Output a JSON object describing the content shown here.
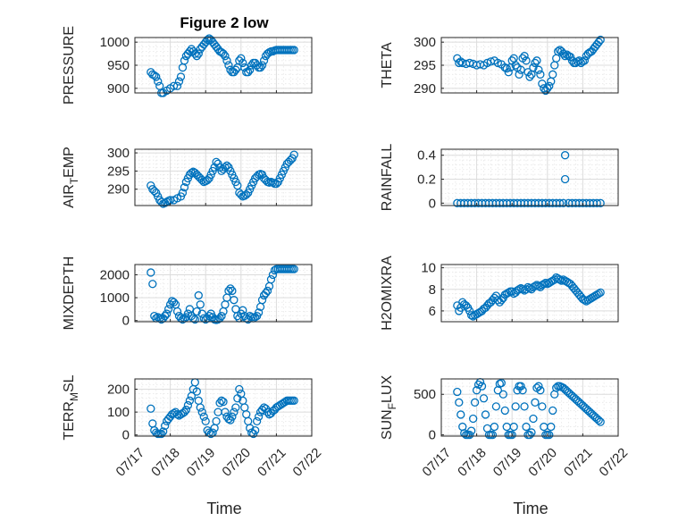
{
  "figure": {
    "title": "Figure 2 low",
    "marker_color": "#0072bd",
    "x_tick_labels": [
      "07/17",
      "07/18",
      "07/19",
      "07/20",
      "07/21",
      "07/22"
    ],
    "x_label": "Time"
  },
  "chart_data": [
    {
      "type": "scatter",
      "title": "Figure 2 low",
      "ylabel": "PRESSURE",
      "xlabel": "",
      "xlim": [
        0,
        5
      ],
      "ylim": [
        890,
        1010
      ],
      "yticks": [
        900,
        950,
        1000
      ],
      "ytick_labels": [
        "900",
        "950",
        "1000"
      ],
      "grid": true,
      "minor_grid": true,
      "x": [
        0.45,
        0.5,
        0.55,
        0.6,
        0.65,
        0.7,
        0.75,
        0.8,
        0.9,
        1.0,
        1.1,
        1.2,
        1.25,
        1.3,
        1.35,
        1.4,
        1.45,
        1.5,
        1.55,
        1.6,
        1.65,
        1.7,
        1.75,
        1.8,
        1.85,
        1.9,
        1.95,
        2.0,
        2.05,
        2.1,
        2.15,
        2.2,
        2.25,
        2.3,
        2.35,
        2.4,
        2.45,
        2.5,
        2.55,
        2.6,
        2.65,
        2.7,
        2.75,
        2.8,
        2.85,
        2.9,
        2.95,
        3.0,
        3.05,
        3.1,
        3.15,
        3.2,
        3.25,
        3.3,
        3.35,
        3.4,
        3.45,
        3.5,
        3.55,
        3.6,
        3.65,
        3.7,
        3.75,
        3.8,
        3.85,
        3.9,
        3.95,
        4.0,
        4.05,
        4.1,
        4.15,
        4.2,
        4.25,
        4.3,
        4.35,
        4.4,
        4.45,
        4.5
      ],
      "y": [
        935,
        930,
        928,
        925,
        915,
        905,
        890,
        890,
        895,
        900,
        905,
        905,
        915,
        925,
        945,
        960,
        970,
        975,
        980,
        985,
        980,
        975,
        970,
        975,
        985,
        990,
        995,
        1000,
        1005,
        1008,
        1005,
        1000,
        995,
        990,
        985,
        980,
        978,
        975,
        970,
        960,
        950,
        940,
        935,
        935,
        940,
        945,
        960,
        965,
        955,
        945,
        935,
        935,
        940,
        950,
        955,
        955,
        950,
        945,
        945,
        950,
        960,
        970,
        975,
        978,
        980,
        980,
        982,
        983,
        983,
        983,
        983,
        983,
        983,
        983,
        983,
        983,
        983,
        983
      ]
    },
    {
      "type": "scatter",
      "title": "",
      "ylabel": "THETA",
      "xlabel": "",
      "xlim": [
        0,
        5
      ],
      "ylim": [
        289,
        301
      ],
      "yticks": [
        290,
        295,
        300
      ],
      "ytick_labels": [
        "290",
        "295",
        "300"
      ],
      "grid": true,
      "minor_grid": true,
      "x": [
        0.45,
        0.5,
        0.55,
        0.6,
        0.7,
        0.8,
        0.9,
        1.0,
        1.1,
        1.2,
        1.3,
        1.4,
        1.5,
        1.6,
        1.7,
        1.8,
        1.85,
        1.9,
        1.95,
        2.0,
        2.05,
        2.1,
        2.15,
        2.2,
        2.25,
        2.3,
        2.35,
        2.4,
        2.45,
        2.5,
        2.55,
        2.6,
        2.65,
        2.7,
        2.75,
        2.8,
        2.85,
        2.9,
        2.95,
        3.0,
        3.05,
        3.1,
        3.15,
        3.2,
        3.25,
        3.3,
        3.35,
        3.4,
        3.45,
        3.5,
        3.55,
        3.6,
        3.65,
        3.7,
        3.75,
        3.8,
        3.85,
        3.9,
        3.95,
        4.0,
        4.05,
        4.1,
        4.15,
        4.2,
        4.25,
        4.3,
        4.35,
        4.4,
        4.45,
        4.5
      ],
      "y": [
        296.5,
        295.5,
        295.8,
        295.5,
        295.3,
        295.5,
        295.3,
        295,
        295.2,
        295,
        295.5,
        295.8,
        296,
        295.5,
        295.2,
        294.5,
        294.3,
        293.5,
        294.5,
        296,
        296.5,
        295,
        294.5,
        293,
        294,
        296.5,
        297,
        296,
        293.5,
        292.5,
        293,
        294.5,
        295.5,
        296,
        294,
        293,
        291,
        290,
        289.5,
        290,
        290.5,
        291.5,
        293,
        295,
        296.5,
        298,
        298.3,
        298,
        297.5,
        297,
        297.3,
        297,
        296.8,
        296,
        295.5,
        295.5,
        295.8,
        296,
        295.5,
        295.8,
        296,
        297,
        297.5,
        297.8,
        298,
        298.5,
        299,
        299.5,
        300,
        300.5
      ]
    },
    {
      "type": "scatter",
      "title": "",
      "ylabel": "AIR_TEMP",
      "xlabel": "",
      "xlim": [
        0,
        5
      ],
      "ylim": [
        285.5,
        301
      ],
      "yticks": [
        290,
        295,
        300
      ],
      "ytick_labels": [
        "290",
        "295",
        "300"
      ],
      "grid": true,
      "minor_grid": true,
      "x": [
        0.45,
        0.5,
        0.55,
        0.6,
        0.65,
        0.7,
        0.75,
        0.8,
        0.85,
        0.9,
        0.95,
        1.0,
        1.1,
        1.2,
        1.3,
        1.35,
        1.4,
        1.45,
        1.5,
        1.55,
        1.6,
        1.65,
        1.7,
        1.75,
        1.8,
        1.85,
        1.9,
        1.95,
        2.0,
        2.05,
        2.1,
        2.15,
        2.2,
        2.25,
        2.3,
        2.35,
        2.4,
        2.45,
        2.5,
        2.55,
        2.6,
        2.65,
        2.7,
        2.75,
        2.8,
        2.85,
        2.9,
        2.95,
        3.0,
        3.05,
        3.1,
        3.15,
        3.2,
        3.25,
        3.3,
        3.35,
        3.4,
        3.45,
        3.5,
        3.55,
        3.6,
        3.65,
        3.7,
        3.75,
        3.8,
        3.85,
        3.9,
        3.95,
        4.0,
        4.05,
        4.1,
        4.15,
        4.2,
        4.25,
        4.3,
        4.35,
        4.4,
        4.45,
        4.5
      ],
      "y": [
        291,
        290,
        289.5,
        289,
        288,
        287,
        286.5,
        286,
        286.2,
        286.5,
        286.8,
        287,
        287,
        287.5,
        288,
        289,
        290.5,
        292,
        293,
        294,
        294.5,
        294.8,
        294.5,
        294,
        293.5,
        293,
        292.5,
        292,
        292.2,
        292.5,
        293,
        294,
        295,
        296,
        297.5,
        297,
        296,
        295,
        295.5,
        296,
        296.5,
        296,
        295,
        294,
        293,
        292,
        291,
        289,
        288.5,
        288,
        288.2,
        288.5,
        289,
        290,
        291,
        292,
        293,
        293.5,
        294,
        294.2,
        294,
        293,
        292.5,
        292,
        291.8,
        292,
        291.8,
        291.5,
        291.5,
        292,
        293,
        294,
        295,
        296,
        297,
        297.5,
        298,
        298.5,
        299.5
      ]
    },
    {
      "type": "scatter",
      "title": "",
      "ylabel": "RAINFALL",
      "xlabel": "",
      "xlim": [
        0,
        5
      ],
      "ylim": [
        -0.02,
        0.45
      ],
      "yticks": [
        0,
        0.2,
        0.4
      ],
      "ytick_labels": [
        "0",
        "0.2",
        "0.4"
      ],
      "grid": true,
      "minor_grid": true,
      "x": [
        0.45,
        0.55,
        0.65,
        0.75,
        0.85,
        0.95,
        1.05,
        1.15,
        1.25,
        1.35,
        1.45,
        1.55,
        1.65,
        1.75,
        1.85,
        1.95,
        2.05,
        2.15,
        2.25,
        2.35,
        2.45,
        2.55,
        2.65,
        2.75,
        2.85,
        2.95,
        3.05,
        3.15,
        3.25,
        3.35,
        3.45,
        3.5,
        3.6,
        3.7,
        3.8,
        3.9,
        4.0,
        4.1,
        4.2,
        4.3,
        4.4,
        4.5,
        3.5
      ],
      "y": [
        0,
        0,
        0,
        0,
        0,
        0,
        0,
        0,
        0,
        0,
        0,
        0,
        0,
        0,
        0,
        0,
        0,
        0,
        0,
        0,
        0,
        0,
        0,
        0,
        0,
        0,
        0,
        0,
        0,
        0,
        0,
        0.2,
        0,
        0,
        0,
        0,
        0,
        0,
        0,
        0,
        0,
        0,
        0.4
      ]
    },
    {
      "type": "scatter",
      "title": "",
      "ylabel": "MIXDEPTH",
      "xlabel": "",
      "xlim": [
        0,
        5
      ],
      "ylim": [
        -50,
        2450
      ],
      "yticks": [
        0,
        1000,
        2000
      ],
      "ytick_labels": [
        "0",
        "1000",
        "2000"
      ],
      "grid": true,
      "minor_grid": true,
      "x": [
        0.45,
        0.5,
        0.55,
        0.6,
        0.65,
        0.7,
        0.75,
        0.8,
        0.85,
        0.9,
        0.95,
        1.0,
        1.05,
        1.1,
        1.15,
        1.2,
        1.25,
        1.3,
        1.35,
        1.4,
        1.45,
        1.5,
        1.55,
        1.6,
        1.65,
        1.7,
        1.75,
        1.8,
        1.85,
        1.9,
        1.95,
        2.0,
        2.05,
        2.1,
        2.15,
        2.2,
        2.25,
        2.3,
        2.35,
        2.4,
        2.45,
        2.5,
        2.55,
        2.6,
        2.65,
        2.7,
        2.75,
        2.8,
        2.85,
        2.9,
        2.95,
        3.0,
        3.05,
        3.1,
        3.15,
        3.2,
        3.25,
        3.3,
        3.35,
        3.4,
        3.45,
        3.5,
        3.55,
        3.6,
        3.65,
        3.7,
        3.75,
        3.8,
        3.85,
        3.9,
        3.95,
        4.0,
        4.05,
        4.1,
        4.15,
        4.2,
        4.25,
        4.3,
        4.35,
        4.4,
        4.45,
        4.5
      ],
      "y": [
        2100,
        1600,
        200,
        100,
        150,
        100,
        50,
        100,
        200,
        300,
        500,
        700,
        850,
        800,
        700,
        400,
        200,
        100,
        50,
        100,
        150,
        300,
        500,
        200,
        100,
        50,
        400,
        1100,
        700,
        300,
        100,
        50,
        100,
        200,
        300,
        150,
        50,
        30,
        50,
        100,
        200,
        400,
        700,
        1000,
        1300,
        1400,
        1300,
        900,
        500,
        200,
        100,
        300,
        450,
        200,
        100,
        50,
        200,
        150,
        100,
        150,
        200,
        350,
        600,
        900,
        1100,
        1200,
        1300,
        1500,
        1800,
        2000,
        2200,
        2250,
        2250,
        2250,
        2250,
        2250,
        2250,
        2250,
        2250,
        2250,
        2250,
        2250
      ]
    },
    {
      "type": "scatter",
      "title": "",
      "ylabel": "H2OMIXRA",
      "xlabel": "",
      "xlim": [
        0,
        5
      ],
      "ylim": [
        5,
        10.3
      ],
      "yticks": [
        6,
        8,
        10
      ],
      "ytick_labels": [
        "6",
        "8",
        "10"
      ],
      "grid": true,
      "minor_grid": true,
      "x": [
        0.45,
        0.5,
        0.55,
        0.6,
        0.65,
        0.7,
        0.75,
        0.8,
        0.85,
        0.9,
        0.95,
        1.0,
        1.05,
        1.1,
        1.15,
        1.2,
        1.25,
        1.3,
        1.35,
        1.4,
        1.45,
        1.5,
        1.55,
        1.6,
        1.65,
        1.7,
        1.75,
        1.8,
        1.85,
        1.9,
        1.95,
        2.0,
        2.05,
        2.1,
        2.15,
        2.2,
        2.25,
        2.3,
        2.35,
        2.4,
        2.45,
        2.5,
        2.55,
        2.6,
        2.65,
        2.7,
        2.75,
        2.8,
        2.85,
        2.9,
        2.95,
        3.0,
        3.05,
        3.1,
        3.15,
        3.2,
        3.25,
        3.3,
        3.35,
        3.4,
        3.45,
        3.5,
        3.55,
        3.6,
        3.65,
        3.7,
        3.75,
        3.8,
        3.85,
        3.9,
        3.95,
        4.0,
        4.05,
        4.1,
        4.15,
        4.2,
        4.25,
        4.3,
        4.35,
        4.4,
        4.45,
        4.5
      ],
      "y": [
        6.5,
        6.0,
        6.3,
        6.8,
        6.6,
        6.5,
        6.3,
        6.0,
        5.6,
        5.5,
        5.6,
        5.7,
        5.8,
        5.9,
        6.0,
        6.2,
        6.3,
        6.5,
        6.7,
        6.8,
        7.0,
        7.2,
        7.4,
        7.0,
        6.8,
        7.0,
        7.2,
        7.5,
        7.6,
        7.7,
        7.8,
        7.8,
        7.6,
        7.7,
        7.9,
        8.0,
        8.1,
        8.0,
        7.9,
        8.0,
        8.2,
        8.1,
        8.0,
        8.2,
        8.3,
        8.4,
        8.3,
        8.2,
        8.4,
        8.5,
        8.6,
        8.5,
        8.6,
        8.7,
        8.8,
        8.9,
        9.1,
        9.0,
        8.9,
        8.8,
        8.9,
        8.8,
        8.7,
        8.6,
        8.5,
        8.3,
        8.1,
        7.9,
        7.7,
        7.5,
        7.3,
        7.1,
        7.0,
        6.9,
        7.0,
        7.1,
        7.2,
        7.3,
        7.4,
        7.5,
        7.6,
        7.7
      ]
    },
    {
      "type": "scatter",
      "title": "",
      "ylabel": "TERR_MSL",
      "xlabel": "",
      "xlim": [
        0,
        5
      ],
      "ylim": [
        -5,
        245
      ],
      "yticks": [
        0,
        100,
        200
      ],
      "ytick_labels": [
        "0",
        "100",
        "200"
      ],
      "grid": true,
      "minor_grid": true,
      "x": [
        0.45,
        0.5,
        0.55,
        0.6,
        0.65,
        0.7,
        0.75,
        0.8,
        0.85,
        0.9,
        0.95,
        1.0,
        1.05,
        1.1,
        1.15,
        1.2,
        1.25,
        1.3,
        1.35,
        1.4,
        1.45,
        1.5,
        1.55,
        1.6,
        1.65,
        1.7,
        1.75,
        1.8,
        1.85,
        1.9,
        1.95,
        2.0,
        2.05,
        2.1,
        2.15,
        2.2,
        2.25,
        2.3,
        2.35,
        2.4,
        2.45,
        2.5,
        2.55,
        2.6,
        2.65,
        2.7,
        2.75,
        2.8,
        2.85,
        2.9,
        2.95,
        3.0,
        3.05,
        3.1,
        3.15,
        3.2,
        3.25,
        3.3,
        3.35,
        3.4,
        3.45,
        3.5,
        3.55,
        3.6,
        3.65,
        3.7,
        3.75,
        3.8,
        3.85,
        3.9,
        3.95,
        4.0,
        4.05,
        4.1,
        4.15,
        4.2,
        4.25,
        4.3,
        4.35,
        4.4,
        4.45,
        4.5
      ],
      "y": [
        115,
        50,
        20,
        10,
        5,
        5,
        5,
        15,
        40,
        60,
        70,
        80,
        90,
        95,
        100,
        90,
        85,
        90,
        95,
        100,
        110,
        130,
        150,
        170,
        200,
        230,
        190,
        150,
        120,
        100,
        80,
        60,
        20,
        10,
        5,
        10,
        30,
        60,
        100,
        140,
        150,
        145,
        100,
        80,
        70,
        65,
        80,
        100,
        120,
        160,
        200,
        180,
        150,
        120,
        90,
        60,
        30,
        10,
        5,
        20,
        60,
        80,
        100,
        110,
        120,
        115,
        100,
        90,
        95,
        105,
        110,
        120,
        125,
        130,
        135,
        140,
        145,
        150,
        150,
        150,
        150,
        150
      ]
    },
    {
      "type": "scatter",
      "title": "",
      "ylabel": "SUN_FLUX",
      "xlabel": "",
      "xlim": [
        0,
        5
      ],
      "ylim": [
        -15,
        690
      ],
      "yticks": [
        0,
        500
      ],
      "ytick_labels": [
        "0",
        "500"
      ],
      "grid": true,
      "minor_grid": true,
      "x": [
        0.45,
        0.5,
        0.55,
        0.6,
        0.65,
        0.7,
        0.75,
        0.8,
        0.85,
        0.9,
        0.95,
        1.0,
        1.05,
        1.1,
        1.15,
        1.2,
        1.25,
        1.3,
        1.35,
        1.4,
        1.45,
        1.5,
        1.55,
        1.6,
        1.65,
        1.7,
        1.75,
        1.8,
        1.85,
        1.9,
        1.95,
        2.0,
        2.05,
        2.1,
        2.15,
        2.2,
        2.25,
        2.3,
        2.35,
        2.4,
        2.45,
        2.5,
        2.55,
        2.6,
        2.65,
        2.7,
        2.75,
        2.8,
        2.85,
        2.9,
        2.95,
        3.0,
        3.05,
        3.1,
        3.15,
        3.2,
        3.25,
        3.3,
        3.35,
        3.4,
        3.45,
        3.5,
        3.55,
        3.6,
        3.65,
        3.7,
        3.75,
        3.8,
        3.85,
        3.9,
        3.95,
        4.0,
        4.05,
        4.1,
        4.15,
        4.2,
        4.25,
        4.3,
        4.35,
        4.4,
        4.45,
        4.5
      ],
      "y": [
        530,
        400,
        250,
        100,
        20,
        0,
        0,
        0,
        50,
        200,
        400,
        550,
        620,
        650,
        600,
        450,
        250,
        80,
        0,
        0,
        0,
        100,
        350,
        550,
        630,
        640,
        500,
        300,
        100,
        0,
        0,
        0,
        100,
        350,
        550,
        600,
        600,
        550,
        350,
        100,
        0,
        0,
        30,
        200,
        400,
        580,
        600,
        550,
        350,
        100,
        0,
        0,
        0,
        100,
        300,
        500,
        580,
        600,
        600,
        590,
        580,
        560,
        540,
        520,
        500,
        480,
        460,
        440,
        420,
        400,
        380,
        360,
        340,
        320,
        300,
        280,
        260,
        240,
        220,
        200,
        180,
        160
      ]
    }
  ]
}
